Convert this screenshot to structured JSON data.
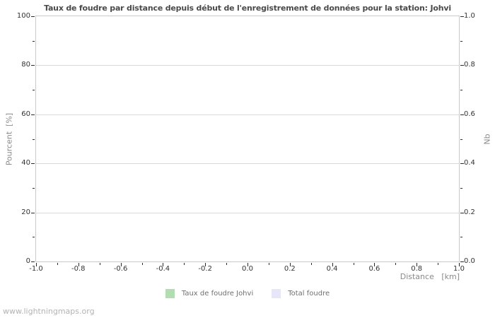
{
  "page": {
    "footer": "www.lightningmaps.org"
  },
  "chart_data": {
    "type": "line",
    "title": "Taux de foudre par distance depuis début de l'enregistrement de données pour la station: Johvi",
    "xlabel": "Distance   [km]",
    "ylabel_left": "Pourcent  [%]",
    "ylabel_right": "Nb",
    "xlim": [
      -1.0,
      1.0
    ],
    "ylim_left": [
      0,
      100
    ],
    "ylim_right": [
      0.0,
      1.0
    ],
    "x_ticks": [
      -1.0,
      -0.8,
      -0.6,
      -0.4,
      -0.2,
      0.0,
      0.2,
      0.4,
      0.6,
      0.8,
      1.0
    ],
    "x_tick_labels": [
      "-1.0",
      "-0.8",
      "-0.6",
      "-0.4",
      "-0.2",
      "0.0",
      "0.2",
      "0.4",
      "0.6",
      "0.8",
      "1.0"
    ],
    "y_ticks_left": [
      0,
      20,
      40,
      60,
      80,
      100
    ],
    "y_left_tick_labels": [
      "0",
      "20",
      "40",
      "60",
      "80",
      "100"
    ],
    "y_ticks_right": [
      0.0,
      0.2,
      0.4,
      0.6,
      0.8,
      1.0
    ],
    "y_right_tick_labels": [
      "0.0",
      "0.2",
      "0.4",
      "0.6",
      "0.8",
      "1.0"
    ],
    "grid": "horizontal-major-only",
    "legend_position": "bottom-center",
    "series": [
      {
        "name": "Taux de foudre Johvi",
        "color": "#b2dcb2",
        "values": []
      },
      {
        "name": "Total foudre",
        "color": "#e7e6f9",
        "values": []
      }
    ]
  }
}
